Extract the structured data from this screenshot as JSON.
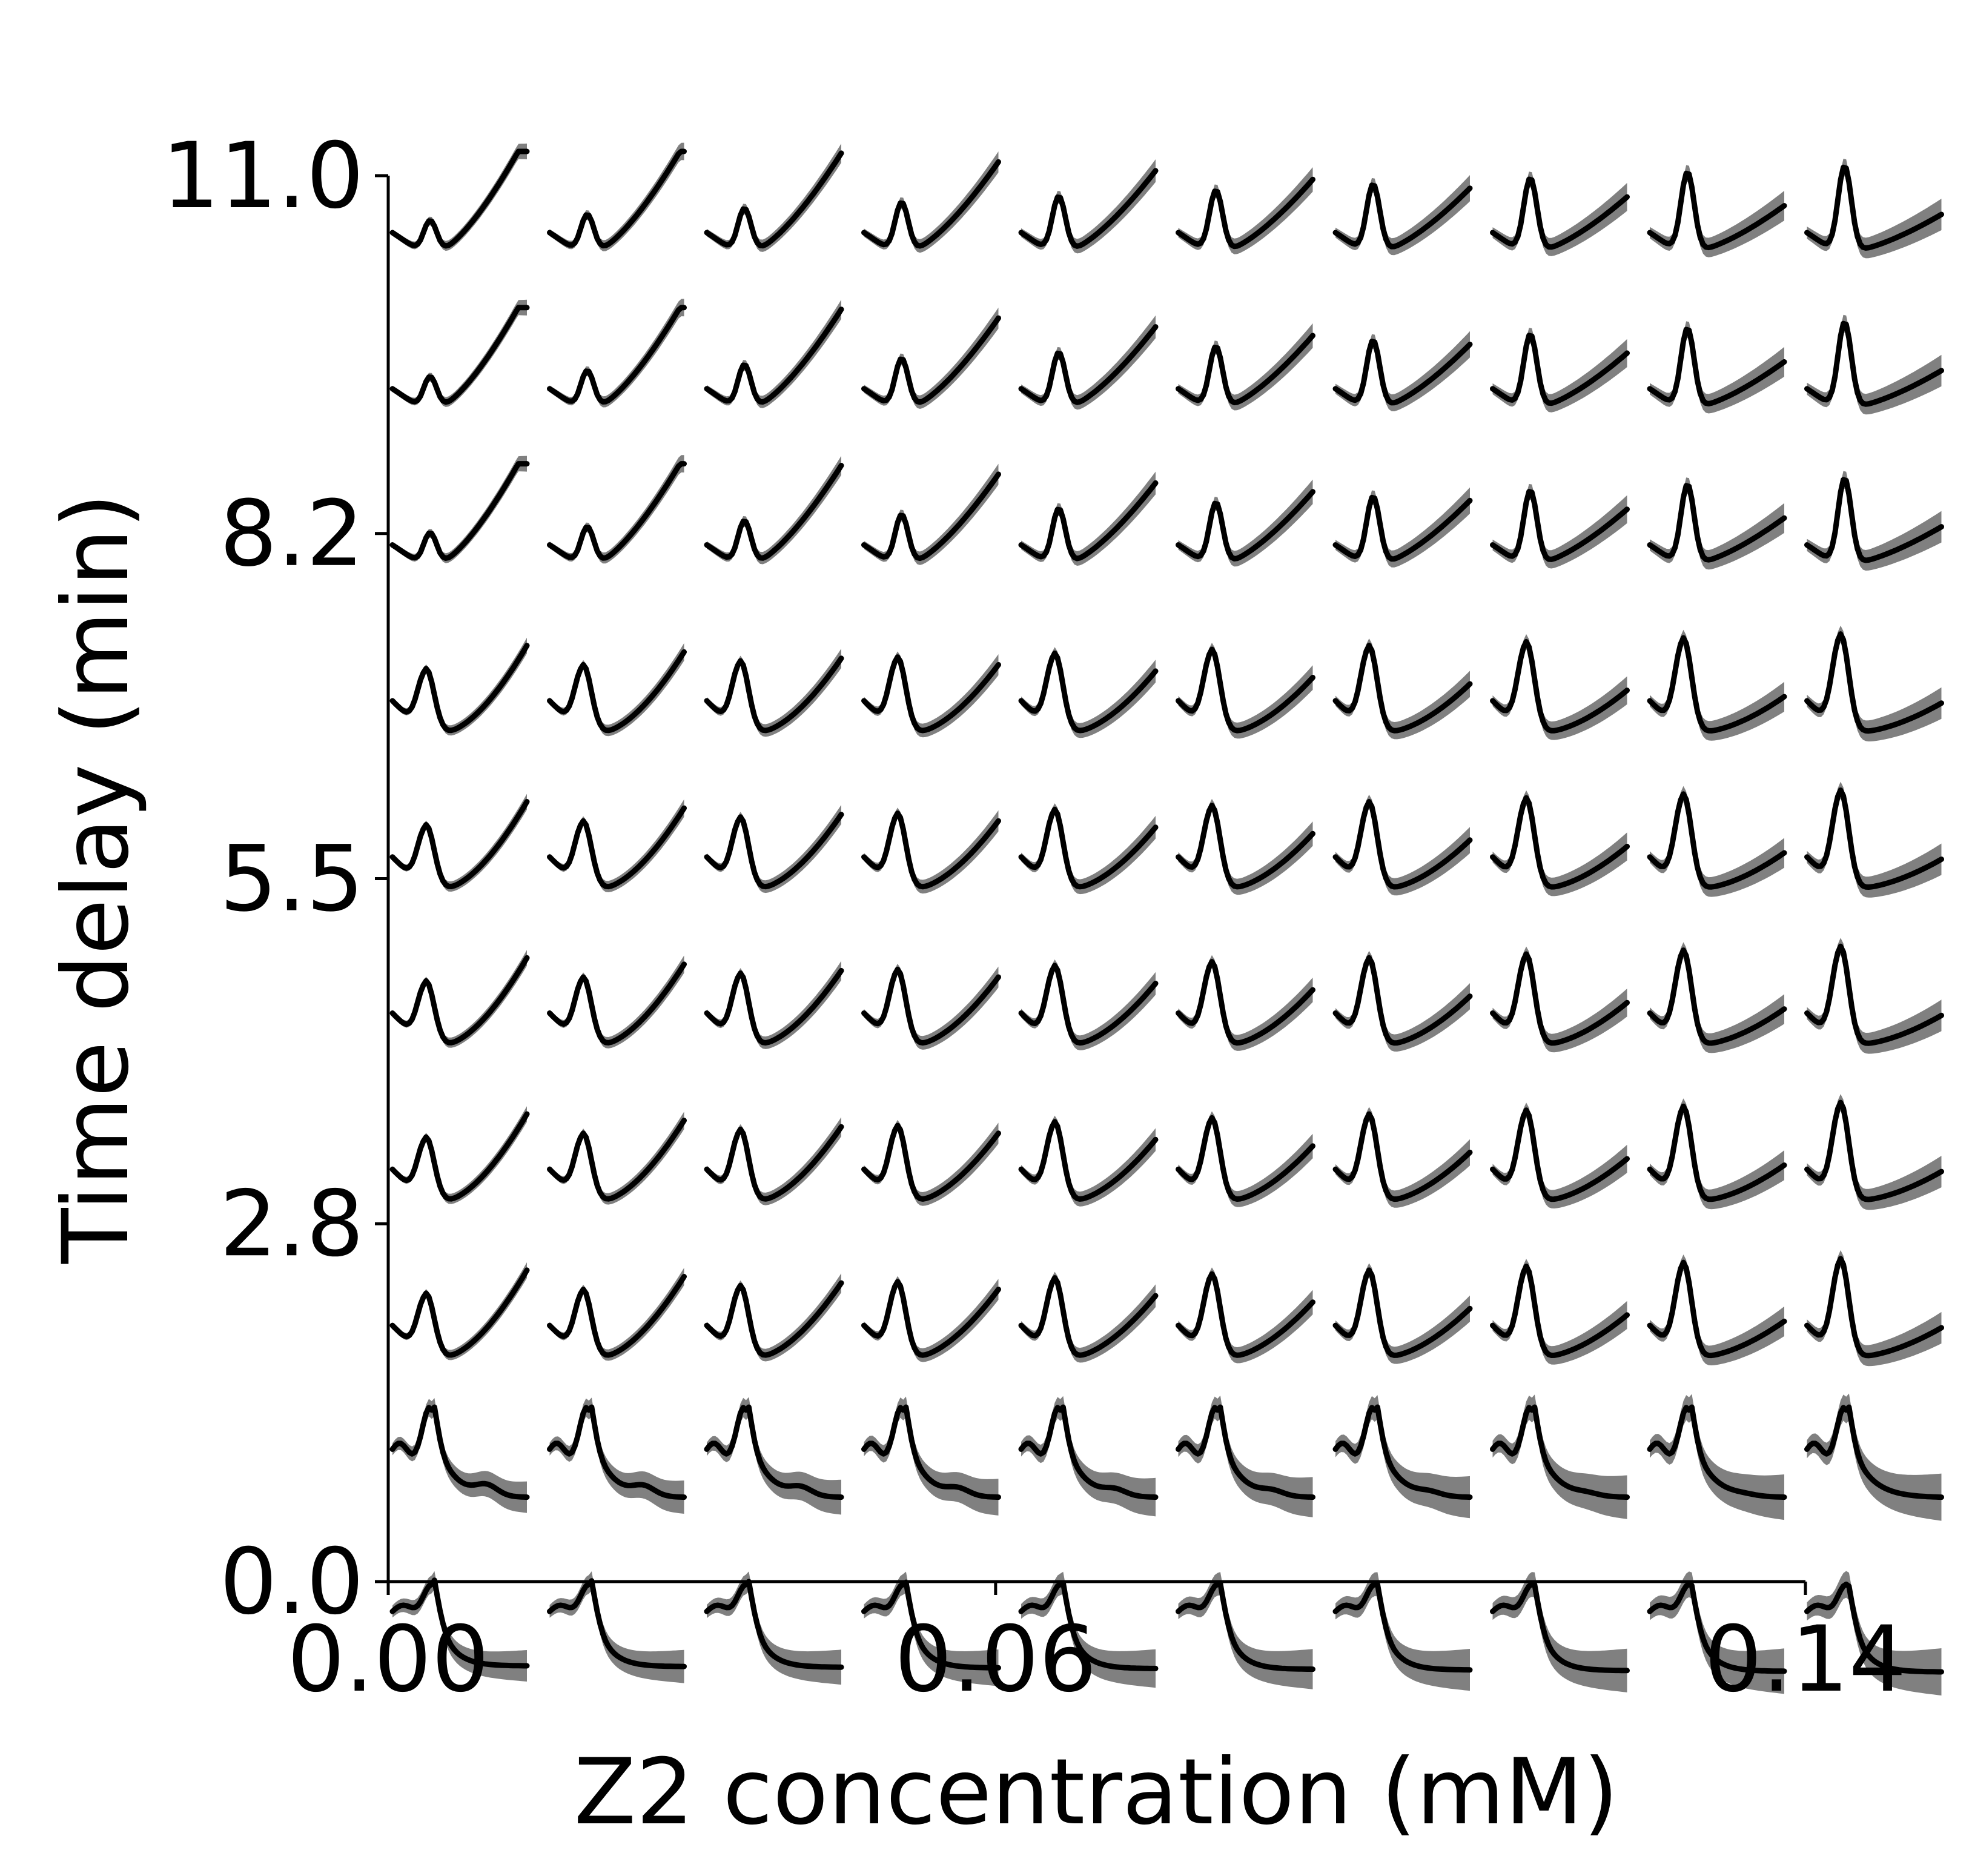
{
  "chart_data": {
    "type": "line",
    "layout": "grid of small line plots with shaded error bands",
    "xlabel": "Z2 concentration (mM)",
    "ylabel": "Time delay (min)",
    "x_ticks": [
      "0.00",
      "0.06",
      "0.14"
    ],
    "x_tick_values": [
      0.0,
      0.06,
      0.14
    ],
    "y_ticks": [
      "0.0",
      "2.8",
      "5.5",
      "8.2",
      "11.0"
    ],
    "y_tick_values": [
      0.0,
      2.8,
      5.5,
      8.2,
      11.0
    ],
    "xlim": [
      0.0,
      0.14
    ],
    "ylim": [
      0.0,
      11.0
    ],
    "grid": false,
    "line_color": "#000000",
    "band_color": "#808080",
    "columns": 10,
    "rows": 10,
    "row_patterns": [
      "early peak then decay to low plateau",
      "early peak then decay with small bump",
      "peak then dip then rise",
      "peak then dip then rise",
      "peak then dip then rise",
      "peak then dip then rise",
      "peak then dip then rise",
      "small peak then strong rise",
      "small peak then strong rise",
      "small peak then strong rise"
    ]
  }
}
